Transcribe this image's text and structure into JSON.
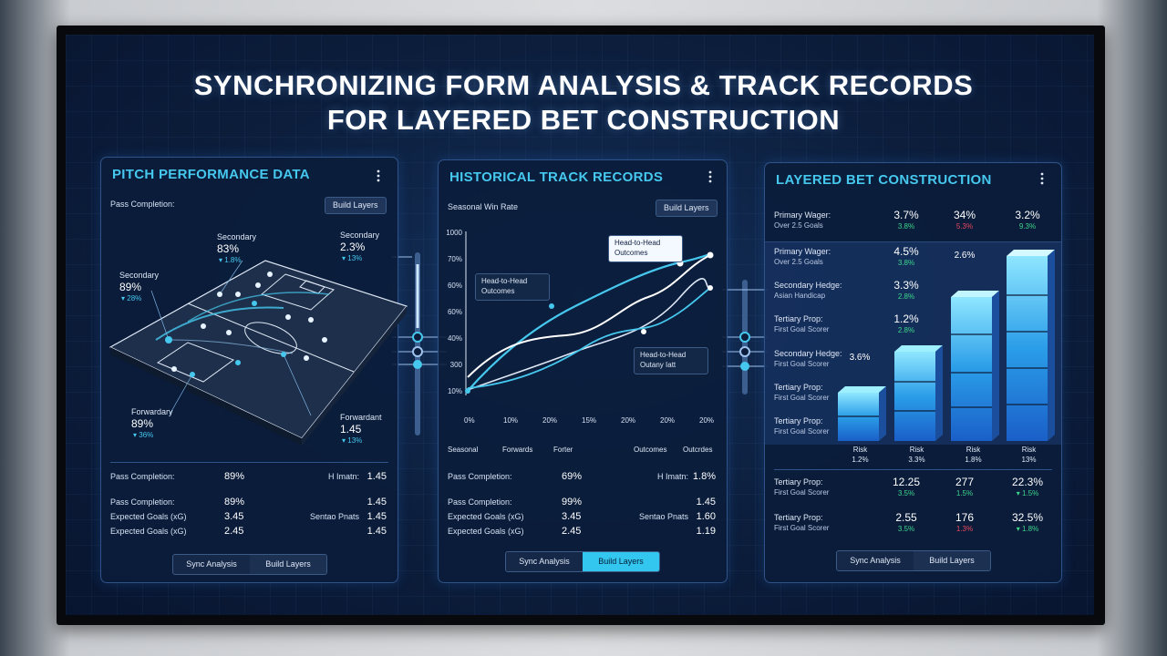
{
  "header": {
    "title_line1": "SYNCHRONIZING FORM ANALYSIS & TRACK RECORDS",
    "title_line2": "FOR LAYERED BET CONSTRUCTION"
  },
  "pitch_panel": {
    "title": "PITCH PERFORMANCE DATA",
    "subtitle": "Pass Completion:",
    "button": "Build Layers",
    "callouts": [
      {
        "label": "Secondary",
        "value": "83%",
        "change": "▾ 1.8%"
      },
      {
        "label": "Secondary",
        "value": "2.3%",
        "change": "▾ 13%"
      },
      {
        "label": "Secondary",
        "value": "89%",
        "change": "▾ 28%"
      },
      {
        "label": "Forwardary",
        "value": "89%",
        "change": "▾ 36%"
      },
      {
        "label": "Forwardant",
        "value": "1.45",
        "change": "▾ 13%"
      }
    ],
    "stats": [
      {
        "label": "Pass Completion:",
        "value": "89%",
        "label2": "H Imatn:",
        "value2": "1.45"
      },
      {
        "label": "Pass Completion:",
        "value": "89%",
        "value2": "1.45"
      },
      {
        "label": "Expected Goals (xG)",
        "value": "3.45",
        "label2": "Sentao Pnats",
        "value2": "1.45"
      },
      {
        "label": "Expected Goals (xG)",
        "value": "2.45",
        "value2": "1.45"
      }
    ],
    "tabs": [
      "Sync Analysis",
      "Build Layers"
    ]
  },
  "track_panel": {
    "title": "HISTORICAL TRACK RECORDS",
    "subtitle": "Seasonal Win Rate",
    "button": "Build Layers",
    "y_labels": [
      "1000",
      "70%",
      "60%",
      "60%",
      "40%",
      "300",
      "10%"
    ],
    "x_labels": [
      "0%",
      "10%",
      "20%",
      "15%",
      "20%",
      "20%",
      "20%"
    ],
    "legends": [
      [
        "Head-to-Head",
        "Outcomes"
      ],
      [
        "Head-to-Head",
        "Outcomes"
      ],
      [
        "Head-to-Head",
        "Outany Iatt"
      ]
    ],
    "filters": [
      "Seasonal",
      "Forwards",
      "Forter",
      "Outcomes",
      "Outcrdes"
    ],
    "stats": [
      {
        "label": "Pass Completion:",
        "value": "69%",
        "label2": "H Imatn:",
        "value2": "1.8%"
      },
      {
        "label": "Pass Completion:",
        "value": "99%",
        "value2": "1.45"
      },
      {
        "label": "Expected Goals (xG)",
        "value": "3.45",
        "label2": "Sentao Pnats",
        "value2": "1.60"
      },
      {
        "label": "Expected Goals (xG)",
        "value": "2.45",
        "value2": "1.19"
      }
    ],
    "tabs": [
      "Sync Analysis",
      "Build Layers"
    ]
  },
  "bet_panel": {
    "title": "LAYERED BET CONSTRUCTION",
    "rows": [
      {
        "label": "Primary Wager:",
        "sub": "Over 2.5 Goals",
        "cells": [
          {
            "value": "3.7%",
            "change": "3.8%",
            "color": "#3dd68c"
          },
          {
            "value": "34%",
            "change": "5.3%",
            "color": "#e8475f"
          },
          {
            "value": "3.2%",
            "change": "9.3%",
            "color": "#3dd68c"
          }
        ]
      },
      {
        "label": "Primary Wager:",
        "sub": "Over 2.5 Goals",
        "cells": [
          {
            "value": "4.5%",
            "change": "3.8%",
            "color": "#3dd68c"
          },
          {
            "value": "2.6%"
          }
        ]
      },
      {
        "label": "Secondary Hedge:",
        "sub": "Asian Handicap",
        "cells": [
          {
            "value": "3.3%",
            "change": "2.8%",
            "color": "#3dd68c"
          }
        ]
      },
      {
        "label": "Tertiary Prop:",
        "sub": "First Goal Scorer",
        "cells": [
          {
            "value": "1.2%",
            "change": "2.8%",
            "color": "#3dd68c"
          }
        ]
      },
      {
        "label": "Secondary Hedge:",
        "sub": "First Goal Scorer",
        "cells": [
          {
            "value": "3.6%"
          }
        ]
      },
      {
        "label": "Tertiary Prop:",
        "sub": "First Goal Scorer"
      },
      {
        "label": "Tertiary Prop:",
        "sub": "First Goal Scorer"
      }
    ],
    "risks": [
      {
        "label": "Risk",
        "value": "1.2%"
      },
      {
        "label": "Risk",
        "value": "3.3%"
      },
      {
        "label": "Risk",
        "value": "1.8%"
      },
      {
        "label": "Risk",
        "value": "13%"
      }
    ],
    "summary": [
      {
        "label": "Tertiary Prop:",
        "sub": "First Goal Scorer",
        "cells": [
          {
            "value": "12.25",
            "change": "3.5%",
            "color": "#3dd68c"
          },
          {
            "value": "277",
            "change": "1.5%",
            "color": "#3dd68c"
          },
          {
            "value": "22.3%",
            "change": "▾ 1.5%",
            "color": "#3dd68c"
          }
        ]
      },
      {
        "label": "Tertiary Prop:",
        "sub": "First Goal Scorer",
        "cells": [
          {
            "value": "2.55",
            "change": "3.5%",
            "color": "#3dd68c"
          },
          {
            "value": "176",
            "change": "1.3%",
            "color": "#e8475f"
          },
          {
            "value": "32.5%",
            "change": "▾ 1.8%",
            "color": "#3dd68c"
          }
        ]
      }
    ],
    "tabs": [
      "Sync Analysis",
      "Build Layers"
    ]
  }
}
